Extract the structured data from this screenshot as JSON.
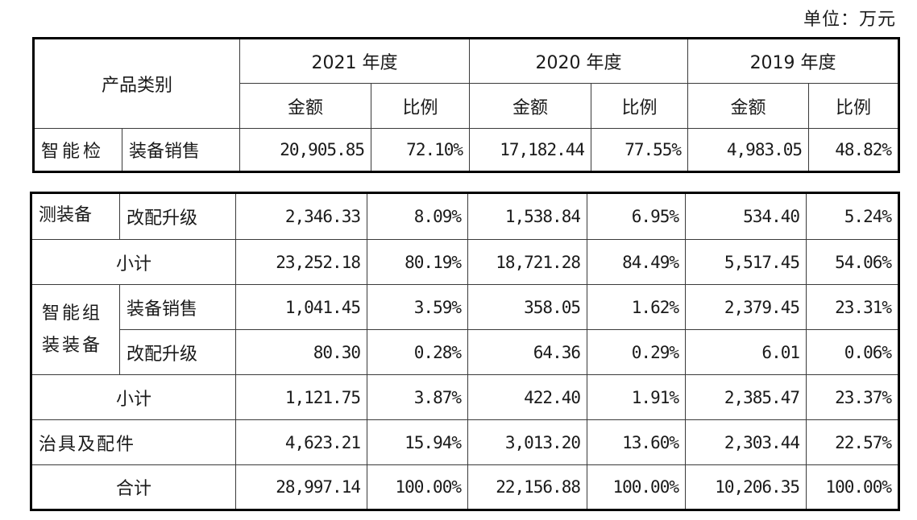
{
  "unit_label": "单位：万元",
  "header": {
    "category": "产品类别",
    "years": [
      "2021 年度",
      "2020 年度",
      "2019 年度"
    ],
    "amount": "金额",
    "ratio": "比例"
  },
  "rows": {
    "jiance_sales": {
      "cat": "智能检",
      "sub": "装备销售",
      "values": [
        "20,905.85",
        "72.10%",
        "17,182.44",
        "77.55%",
        "4,983.05",
        "48.82%"
      ]
    },
    "jiance_upgrade": {
      "cat": "测装备",
      "sub": "改配升级",
      "values": [
        "2,346.33",
        "8.09%",
        "1,538.84",
        "6.95%",
        "534.40",
        "5.24%"
      ]
    },
    "jiance_subtotal": {
      "label": "小计",
      "values": [
        "23,252.18",
        "80.19%",
        "18,721.28",
        "84.49%",
        "5,517.45",
        "54.06%"
      ]
    },
    "zuzhuang": {
      "cat_line1": "智能组",
      "cat_line2": "装装备",
      "sales_sub": "装备销售",
      "sales_values": [
        "1,041.45",
        "3.59%",
        "358.05",
        "1.62%",
        "2,379.45",
        "23.31%"
      ],
      "upgrade_sub": "改配升级",
      "upgrade_values": [
        "80.30",
        "0.28%",
        "64.36",
        "0.29%",
        "6.01",
        "0.06%"
      ]
    },
    "zuzhuang_subtotal": {
      "label": "小计",
      "values": [
        "1,121.75",
        "3.87%",
        "422.40",
        "1.91%",
        "2,385.47",
        "23.37%"
      ]
    },
    "fixtures": {
      "label": "治具及配件",
      "values": [
        "4,623.21",
        "15.94%",
        "3,013.20",
        "13.60%",
        "2,303.44",
        "22.57%"
      ]
    },
    "total": {
      "label": "合计",
      "values": [
        "28,997.14",
        "100.00%",
        "22,156.88",
        "100.00%",
        "10,206.35",
        "100.00%"
      ]
    }
  }
}
